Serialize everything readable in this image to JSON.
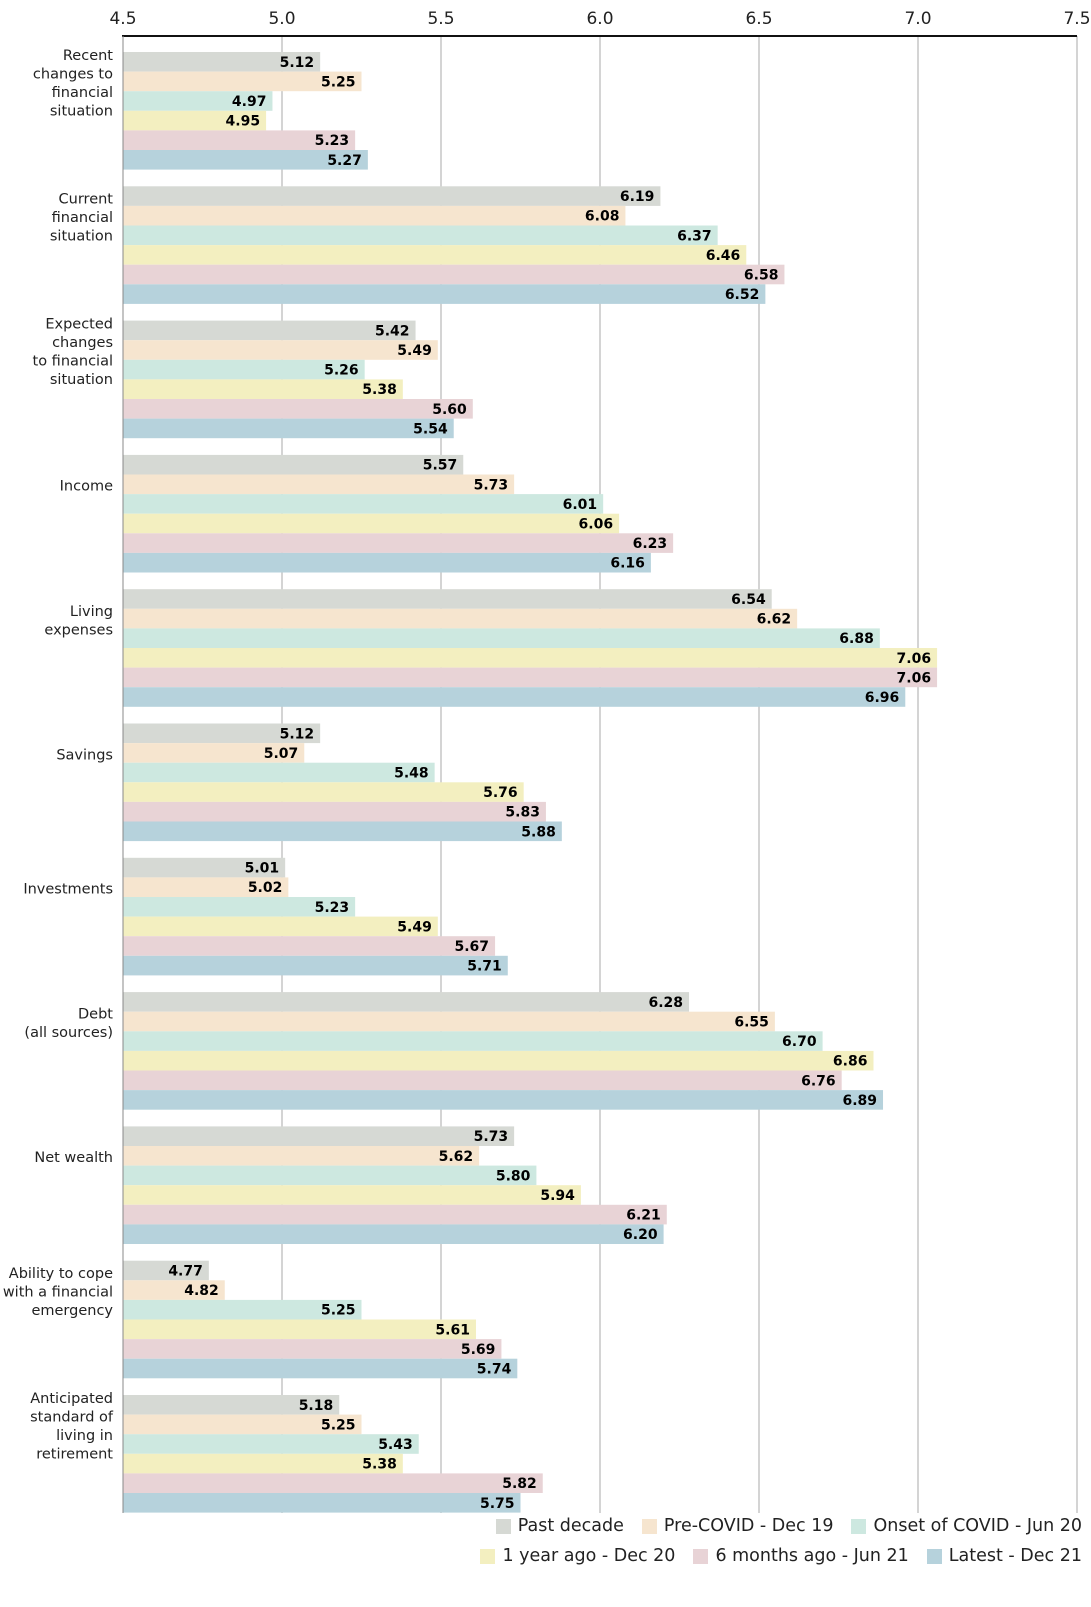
{
  "chart_data": {
    "type": "bar",
    "orientation": "horizontal",
    "xlim": [
      4.5,
      7.5
    ],
    "x_ticks": [
      "4.5",
      "5.0",
      "5.5",
      "6.0",
      "6.5",
      "7.0",
      "7.5"
    ],
    "grid": true,
    "legend_position": "bottom-right",
    "categories": [
      [
        "Recent",
        "changes to",
        "financial",
        "situation"
      ],
      [
        "Current",
        "financial",
        "situation"
      ],
      [
        "Expected",
        "changes",
        "to financial",
        "situation"
      ],
      [
        "Income"
      ],
      [
        "Living",
        "expenses"
      ],
      [
        "Savings"
      ],
      [
        "Investments"
      ],
      [
        "Debt",
        "(all sources)"
      ],
      [
        "Net wealth"
      ],
      [
        "Ability to cope",
        "with a financial",
        "emergency"
      ],
      [
        "Anticipated",
        "standard of",
        "living in",
        "retirement"
      ]
    ],
    "series": [
      {
        "name": "Past decade",
        "color": "#d6d9d4",
        "values": [
          5.12,
          6.19,
          5.42,
          5.57,
          6.54,
          5.12,
          5.01,
          6.28,
          5.73,
          4.77,
          5.18
        ]
      },
      {
        "name": "Pre-COVID - Dec 19",
        "color": "#f6e5cf",
        "values": [
          5.25,
          6.08,
          5.49,
          5.73,
          6.62,
          5.07,
          5.02,
          6.55,
          5.62,
          4.82,
          5.25
        ]
      },
      {
        "name": "Onset of COVID - Jun 20",
        "color": "#cde8e0",
        "values": [
          4.97,
          6.37,
          5.26,
          6.01,
          6.88,
          5.48,
          5.23,
          6.7,
          5.8,
          5.25,
          5.43
        ]
      },
      {
        "name": "1 year ago - Dec 20",
        "color": "#f3efc0",
        "values": [
          4.95,
          6.46,
          5.38,
          6.06,
          7.06,
          5.76,
          5.49,
          6.86,
          5.94,
          5.61,
          5.38
        ]
      },
      {
        "name": "6 months ago - Jun 21",
        "color": "#e8d3d6",
        "values": [
          5.23,
          6.58,
          5.6,
          6.23,
          7.06,
          5.83,
          5.67,
          6.76,
          6.21,
          5.69,
          5.82
        ]
      },
      {
        "name": "Latest - Dec 21",
        "color": "#b6d2dc",
        "values": [
          5.27,
          6.52,
          5.54,
          6.16,
          6.96,
          5.88,
          5.71,
          6.89,
          6.2,
          5.74,
          5.75
        ]
      }
    ],
    "legend_rows": [
      [
        0,
        1,
        2
      ],
      [
        3,
        4,
        5
      ]
    ]
  }
}
